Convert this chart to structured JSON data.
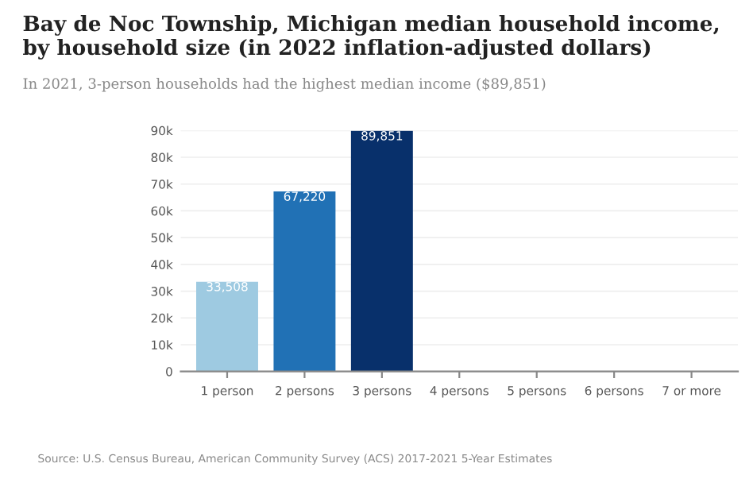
{
  "chart_data": {
    "type": "bar",
    "title": "Bay de Noc Township, Michigan median household income, by household size (in 2022 inflation-adjusted dollars)",
    "subtitle": "In 2021, 3-person households had the highest median income ($89,851)",
    "categories": [
      "1 person",
      "2 persons",
      "3 persons",
      "4 persons",
      "5 persons",
      "6 persons",
      "7 or more"
    ],
    "values": [
      33508,
      67220,
      89851,
      null,
      null,
      null,
      null
    ],
    "colors": [
      "#9ecae1",
      "#2171b5",
      "#08306b",
      "#08306b",
      "#08306b",
      "#08306b",
      "#08306b"
    ],
    "value_labels": [
      "33,508",
      "67,220",
      "89,851",
      null,
      null,
      null,
      null
    ],
    "ylim": [
      0,
      90000
    ],
    "yticks": [
      0,
      {
        "value": 10000,
        "label": "10k"
      },
      {
        "value": 20000,
        "label": "20k"
      },
      {
        "value": 30000,
        "label": "30k"
      },
      {
        "value": 40000,
        "label": "40k"
      },
      {
        "value": 50000,
        "label": "50k"
      },
      {
        "value": 60000,
        "label": "60k"
      },
      {
        "value": 70000,
        "label": "70k"
      },
      {
        "value": 80000,
        "label": "80k"
      },
      {
        "value": 90000,
        "label": "90k"
      }
    ],
    "grid": "y",
    "annotations": [
      "Source: U.S. Census Bureau, American Community Survey (ACS) 2017-2021 5-Year Estimates"
    ]
  }
}
